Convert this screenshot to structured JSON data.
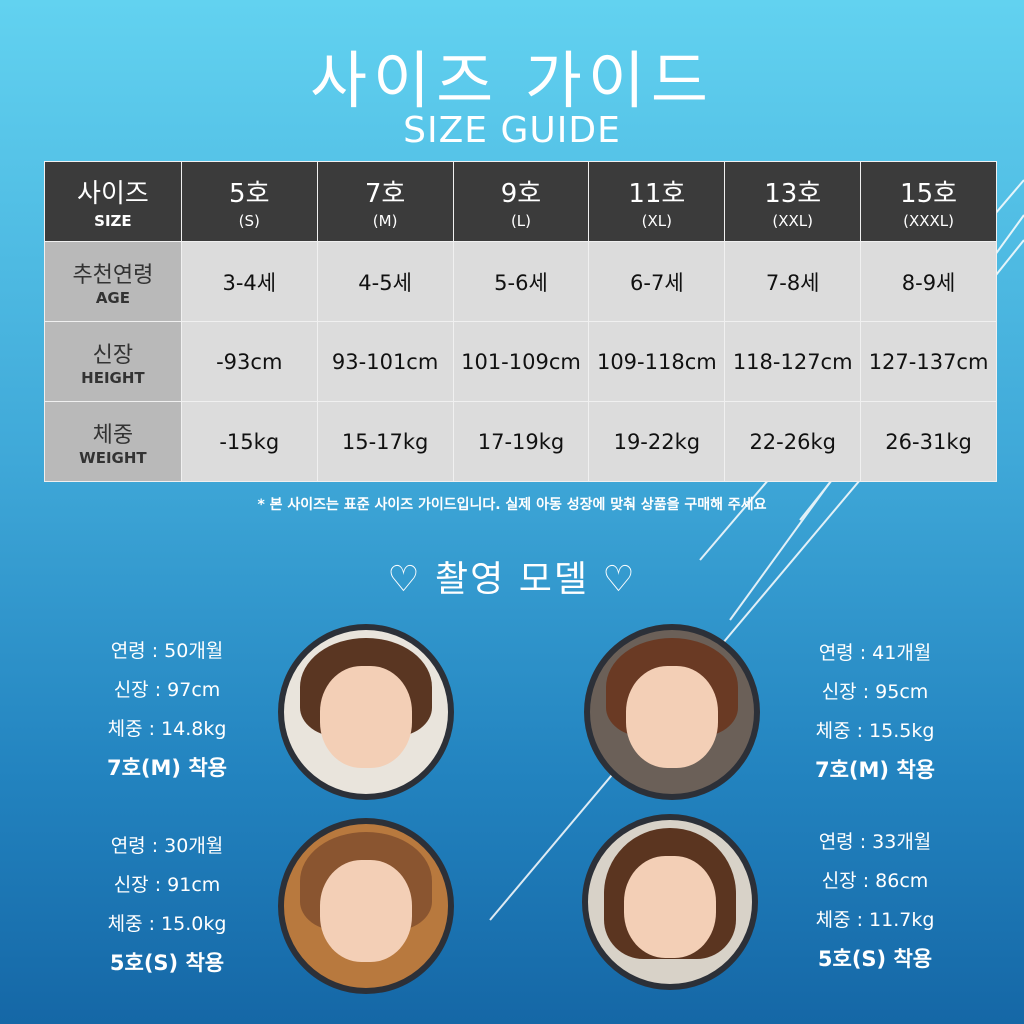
{
  "title": "사이즈 가이드",
  "subtitle": "SIZE GUIDE",
  "table": {
    "header": {
      "ko": "사이즈",
      "en": "SIZE"
    },
    "sizes": [
      {
        "num": "5호",
        "code": "(S)"
      },
      {
        "num": "7호",
        "code": "(M)"
      },
      {
        "num": "9호",
        "code": "(L)"
      },
      {
        "num": "11호",
        "code": "(XL)"
      },
      {
        "num": "13호",
        "code": "(XXL)"
      },
      {
        "num": "15호",
        "code": "(XXXL)"
      }
    ],
    "rows": [
      {
        "ko": "추천연령",
        "en": "AGE",
        "values": [
          "3-4세",
          "4-5세",
          "5-6세",
          "6-7세",
          "7-8세",
          "8-9세"
        ]
      },
      {
        "ko": "신장",
        "en": "HEIGHT",
        "values": [
          "-93cm",
          "93-101cm",
          "101-109cm",
          "109-118cm",
          "118-127cm",
          "127-137cm"
        ]
      },
      {
        "ko": "체중",
        "en": "WEIGHT",
        "values": [
          "-15kg",
          "15-17kg",
          "17-19kg",
          "19-22kg",
          "22-26kg",
          "26-31kg"
        ]
      }
    ]
  },
  "note": "* 본 사이즈는 표준 사이즈 가이드입니다. 실제 아동 성장에 맞춰 상품을 구매해 주세요",
  "models_title": "♡ 촬영 모델 ♡",
  "models": [
    {
      "age": "연령 : 50개월",
      "height": "신장 : 97cm",
      "weight": "체중 : 14.8kg",
      "wear": "7호(M) 착용"
    },
    {
      "age": "연령 : 41개월",
      "height": "신장 : 95cm",
      "weight": "체중 : 15.5kg",
      "wear": "7호(M) 착용"
    },
    {
      "age": "연령 : 30개월",
      "height": "신장 : 91cm",
      "weight": "체중 : 15.0kg",
      "wear": "5호(S) 착용"
    },
    {
      "age": "연령 : 33개월",
      "height": "신장 : 86cm",
      "weight": "체중 : 11.7kg",
      "wear": "5호(S) 착용"
    }
  ]
}
